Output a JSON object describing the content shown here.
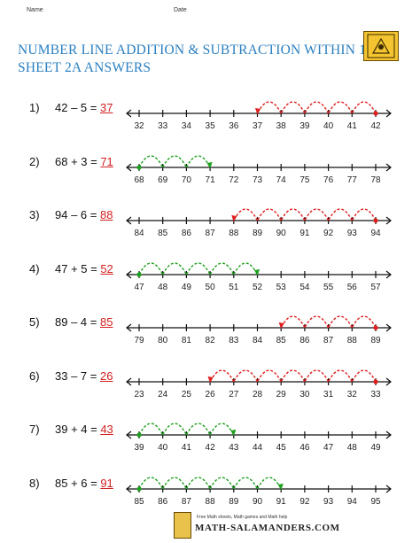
{
  "header": {
    "name_label": "Name",
    "date_label": "Date"
  },
  "title_line1": "NUMBER LINE ADDITION & SUBTRACTION WITHIN 100",
  "title_line2": "SHEET 2A ANSWERS",
  "colors": {
    "title": "#2a7fc0",
    "answer": "#d32020",
    "add_hop": "#1fa01f",
    "sub_hop": "#e02020"
  },
  "problems": [
    {
      "num": "1)",
      "expr": "42 – 5 = ",
      "answer": "37",
      "op": "sub",
      "ticks": [
        "32",
        "33",
        "34",
        "35",
        "36",
        "37",
        "38",
        "39",
        "40",
        "41",
        "42"
      ],
      "start": 10,
      "hops": 5
    },
    {
      "num": "2)",
      "expr": "68 + 3 = ",
      "answer": "71",
      "op": "add",
      "ticks": [
        "68",
        "69",
        "70",
        "71",
        "72",
        "73",
        "74",
        "75",
        "76",
        "77",
        "78"
      ],
      "start": 0,
      "hops": 3
    },
    {
      "num": "3)",
      "expr": "94 – 6 = ",
      "answer": "88",
      "op": "sub",
      "ticks": [
        "84",
        "85",
        "86",
        "87",
        "88",
        "89",
        "90",
        "91",
        "92",
        "93",
        "94"
      ],
      "start": 10,
      "hops": 6
    },
    {
      "num": "4)",
      "expr": "47 + 5 = ",
      "answer": "52",
      "op": "add",
      "ticks": [
        "47",
        "48",
        "49",
        "50",
        "51",
        "52",
        "53",
        "54",
        "55",
        "56",
        "57"
      ],
      "start": 0,
      "hops": 5
    },
    {
      "num": "5)",
      "expr": "89 – 4 = ",
      "answer": "85",
      "op": "sub",
      "ticks": [
        "79",
        "80",
        "81",
        "82",
        "83",
        "84",
        "85",
        "86",
        "87",
        "88",
        "89"
      ],
      "start": 10,
      "hops": 4
    },
    {
      "num": "6)",
      "expr": "33 – 7 = ",
      "answer": "26",
      "op": "sub",
      "ticks": [
        "23",
        "24",
        "25",
        "26",
        "27",
        "28",
        "29",
        "30",
        "31",
        "32",
        "33"
      ],
      "start": 10,
      "hops": 7
    },
    {
      "num": "7)",
      "expr": "39 + 4 = ",
      "answer": "43",
      "op": "add",
      "ticks": [
        "39",
        "40",
        "41",
        "42",
        "43",
        "44",
        "45",
        "46",
        "47",
        "48",
        "49"
      ],
      "start": 0,
      "hops": 4
    },
    {
      "num": "8)",
      "expr": "85 + 6 = ",
      "answer": "91",
      "op": "add",
      "ticks": [
        "85",
        "86",
        "87",
        "88",
        "89",
        "90",
        "91",
        "92",
        "93",
        "94",
        "95"
      ],
      "start": 0,
      "hops": 6
    }
  ],
  "footer": {
    "tagline": "Free Math sheets, Math games and Math help",
    "brand": "MATH-SALAMANDERS.COM"
  }
}
